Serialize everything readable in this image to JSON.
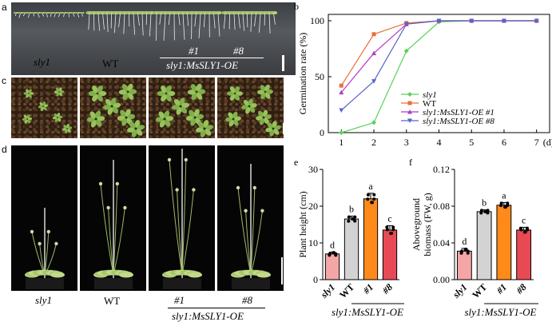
{
  "panel_labels": {
    "a": "a",
    "b": "b",
    "c": "c",
    "d": "d",
    "e": "e",
    "f": "f"
  },
  "panel_a": {
    "labels": {
      "sly1": "sly1",
      "wt": "WT",
      "oe1": "#1",
      "oe8": "#8",
      "line_name": "sly1:MsSLY1-OE"
    }
  },
  "panel_d": {
    "labels": {
      "sly1": "sly1",
      "wt": "WT",
      "oe1": "#1",
      "oe8": "#8",
      "line_name": "sly1:MsSLY1-OE"
    }
  },
  "colors": {
    "sly1_green": "#5ad15a",
    "wt_orange": "#e8703a",
    "oe1_purple": "#b23ac4",
    "oe8_blue": "#5a64c8",
    "bar_pink": "#f4a6a6",
    "bar_grey": "#d3d3d3",
    "bar_orange": "#ff8a1a",
    "bar_red": "#e84a55"
  },
  "chart_data": [
    {
      "type": "line",
      "panel": "b",
      "title": "",
      "xlabel": "(d)",
      "ylabel": "Germination rate (%)",
      "x": [
        1,
        2,
        3,
        4,
        5,
        6,
        7
      ],
      "xticks": [
        "1",
        "2",
        "3",
        "4",
        "5",
        "6",
        "7"
      ],
      "yticks": [
        "0",
        "50",
        "100"
      ],
      "ylim": [
        0,
        100
      ],
      "legend_position": "lower-right",
      "series": [
        {
          "name": "sly1",
          "color": "#5ad15a",
          "values": [
            0,
            9,
            73,
            99,
            100,
            100,
            100
          ]
        },
        {
          "name": "WT",
          "color": "#e8703a",
          "values": [
            42,
            88,
            98,
            100,
            100,
            100,
            100
          ]
        },
        {
          "name": "sly1:MsSLY1-OE #1",
          "color": "#b23ac4",
          "values": [
            36,
            71,
            97,
            100,
            100,
            100,
            100
          ]
        },
        {
          "name": "sly1:MsSLY1-OE #8",
          "color": "#5a64c8",
          "values": [
            20,
            46,
            97,
            100,
            100,
            100,
            100
          ]
        }
      ]
    },
    {
      "type": "bar",
      "panel": "e",
      "ylabel": "Plant height (cm)",
      "categories": [
        "sly1",
        "WT",
        "#1",
        "#8"
      ],
      "group_label": "sly1:MsSLY1-OE",
      "values": [
        7,
        16.5,
        22,
        13.5
      ],
      "errors": [
        0.5,
        0.8,
        1.5,
        1.2
      ],
      "letters": [
        "d",
        "b",
        "a",
        "c"
      ],
      "colors": [
        "#f4a6a6",
        "#d3d3d3",
        "#ff8a1a",
        "#e84a55"
      ],
      "yticks": [
        "0",
        "10",
        "20",
        "30"
      ],
      "ylim": [
        0,
        30
      ]
    },
    {
      "type": "bar",
      "panel": "f",
      "ylabel": "Aboveground biomass (FW, g)",
      "categories": [
        "sly1",
        "WT",
        "#1",
        "#8"
      ],
      "group_label": "sly1:MsSLY1-OE",
      "values": [
        0.031,
        0.074,
        0.081,
        0.054
      ],
      "errors": [
        0.003,
        0.002,
        0.003,
        0.003
      ],
      "letters": [
        "d",
        "b",
        "a",
        "c"
      ],
      "colors": [
        "#f4a6a6",
        "#d3d3d3",
        "#ff8a1a",
        "#e84a55"
      ],
      "yticks": [
        "0.00",
        "0.04",
        "0.08",
        "0.12"
      ],
      "ylim": [
        0,
        0.12
      ]
    }
  ]
}
